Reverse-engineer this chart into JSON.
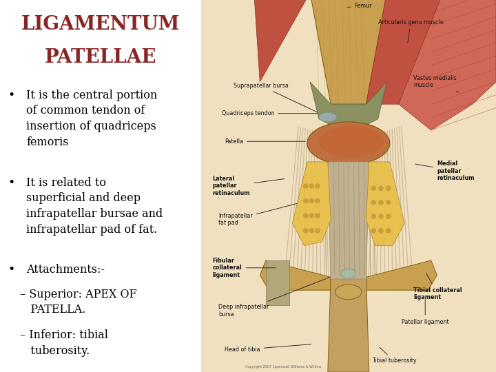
{
  "title_line1": "LIGAMENTUM",
  "title_line2": "PATELLAE",
  "title_color": "#8B2525",
  "title_fontsize": 20,
  "title_fontweight": "bold",
  "background_color": "#FFFFFF",
  "text_color": "#000000",
  "bullet1": "It is the central portion\nof common tendon of\ninsertion of quadriceps\nfemoris",
  "bullet2": "It is related to\nsuperficial and deep\ninfrapatellar bursae and\ninfrapatellar pad of fat.",
  "bullet3": "Attachments:-",
  "sub1": "– Superior: APEX OF\n   PATELLA.",
  "sub2": "– Inferior: tibial\n   tuberosity.",
  "text_fontsize": 11.5,
  "text_fontfamily": "DejaVu Serif",
  "image_split": 0.405,
  "anat_bg": "#F0E0C0",
  "bone_color": "#C8A050",
  "bone_edge": "#8B6010",
  "muscle_color": "#C05040",
  "muscle_color2": "#D06858",
  "tendon_color": "#B89060",
  "ligament_color": "#A89878",
  "ligament_fiber_color": "#C0B090",
  "fat_color": "#D4A030",
  "fat_color2": "#E8C050",
  "patella_color": "#C07040",
  "label_fontsize": 5.8,
  "label_color": "#111111",
  "arrow_color": "#222222"
}
